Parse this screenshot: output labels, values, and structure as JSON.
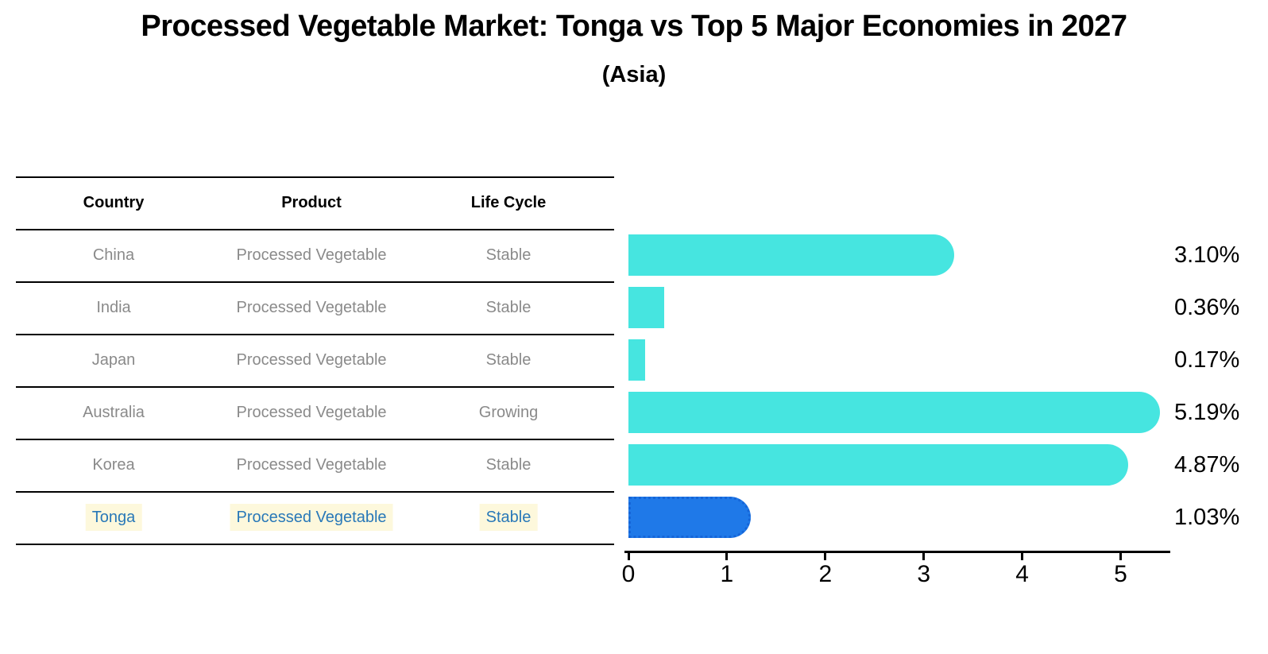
{
  "title": "Processed Vegetable Market: Tonga vs Top 5 Major Economies in 2027",
  "subtitle": "(Asia)",
  "table": {
    "headers": {
      "country": "Country",
      "product": "Product",
      "life_cycle": "Life Cycle"
    },
    "rows": [
      {
        "country": "China",
        "product": "Processed Vegetable",
        "life_cycle": "Stable"
      },
      {
        "country": "India",
        "product": "Processed Vegetable",
        "life_cycle": "Stable"
      },
      {
        "country": "Japan",
        "product": "Processed Vegetable",
        "life_cycle": "Stable"
      },
      {
        "country": "Australia",
        "product": "Processed Vegetable",
        "life_cycle": "Growing"
      },
      {
        "country": "Korea",
        "product": "Processed Vegetable",
        "life_cycle": "Stable"
      },
      {
        "country": "Tonga",
        "product": "Processed Vegetable",
        "life_cycle": "Stable"
      }
    ]
  },
  "chart_data": {
    "type": "bar",
    "orientation": "horizontal",
    "title": "Processed Vegetable Market: Tonga vs Top 5 Major Economies in 2027",
    "subtitle": "(Asia)",
    "categories": [
      "China",
      "India",
      "Japan",
      "Australia",
      "Korea",
      "Tonga"
    ],
    "values": [
      3.1,
      0.36,
      0.17,
      5.19,
      4.87,
      1.03
    ],
    "value_labels": [
      "3.10%",
      "0.36%",
      "0.17%",
      "5.19%",
      "4.87%",
      "1.03%"
    ],
    "x_ticks": [
      0,
      1,
      2,
      3,
      4,
      5
    ],
    "xlim": [
      0,
      5.5
    ],
    "grid": false,
    "legend": false,
    "highlight_index": 5,
    "colors": {
      "bar": "#46E5E0",
      "highlight_bar": "#1F79E8",
      "highlight_border": "#1565D8",
      "axis": "#000000",
      "value_label": "#000000",
      "row_text": "#8A8A8A",
      "header_text": "#000000",
      "highlight_text": "#2878B8",
      "highlight_text_bg": "#FDF8DC"
    }
  }
}
